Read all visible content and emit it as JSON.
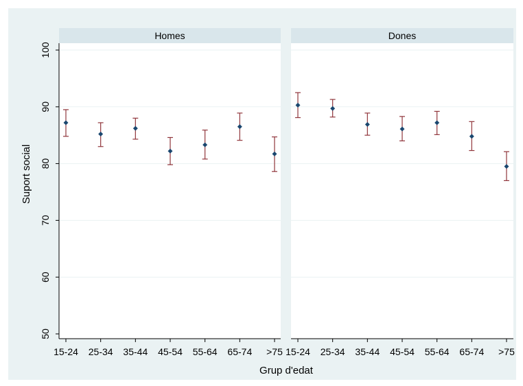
{
  "colors": {
    "background": "#eaf2f3",
    "plot_area": "#ffffff",
    "strip": "#d9e6eb",
    "gridline": "#eaf2f3",
    "marker": "#1a476f",
    "error_bar": "#90353b",
    "axis": "#000000"
  },
  "chart_data": {
    "type": "scatter",
    "subtype": "point-with-error-bars",
    "xlabel": "Grup d'edat",
    "ylabel": "Suport social",
    "ylim": [
      50,
      100
    ],
    "yticks": [
      50,
      60,
      70,
      80,
      90,
      100
    ],
    "grid": true,
    "categories": [
      "15-24",
      "25-34",
      "35-44",
      "45-54",
      "55-64",
      "65-74",
      ">75"
    ],
    "panels": [
      {
        "title": "Homes",
        "values": [
          87.2,
          85.2,
          86.2,
          82.2,
          83.3,
          86.5,
          81.7
        ],
        "lower": [
          84.8,
          83.0,
          84.3,
          79.8,
          80.8,
          84.1,
          78.6
        ],
        "upper": [
          89.5,
          87.2,
          88.0,
          84.6,
          85.9,
          88.9,
          84.7
        ]
      },
      {
        "title": "Dones",
        "values": [
          90.3,
          89.7,
          86.9,
          86.1,
          87.2,
          84.8,
          79.5
        ],
        "lower": [
          88.1,
          88.2,
          85.0,
          84.0,
          85.1,
          82.3,
          77.0
        ],
        "upper": [
          92.5,
          91.3,
          88.9,
          88.3,
          89.2,
          87.4,
          82.1
        ]
      }
    ]
  }
}
